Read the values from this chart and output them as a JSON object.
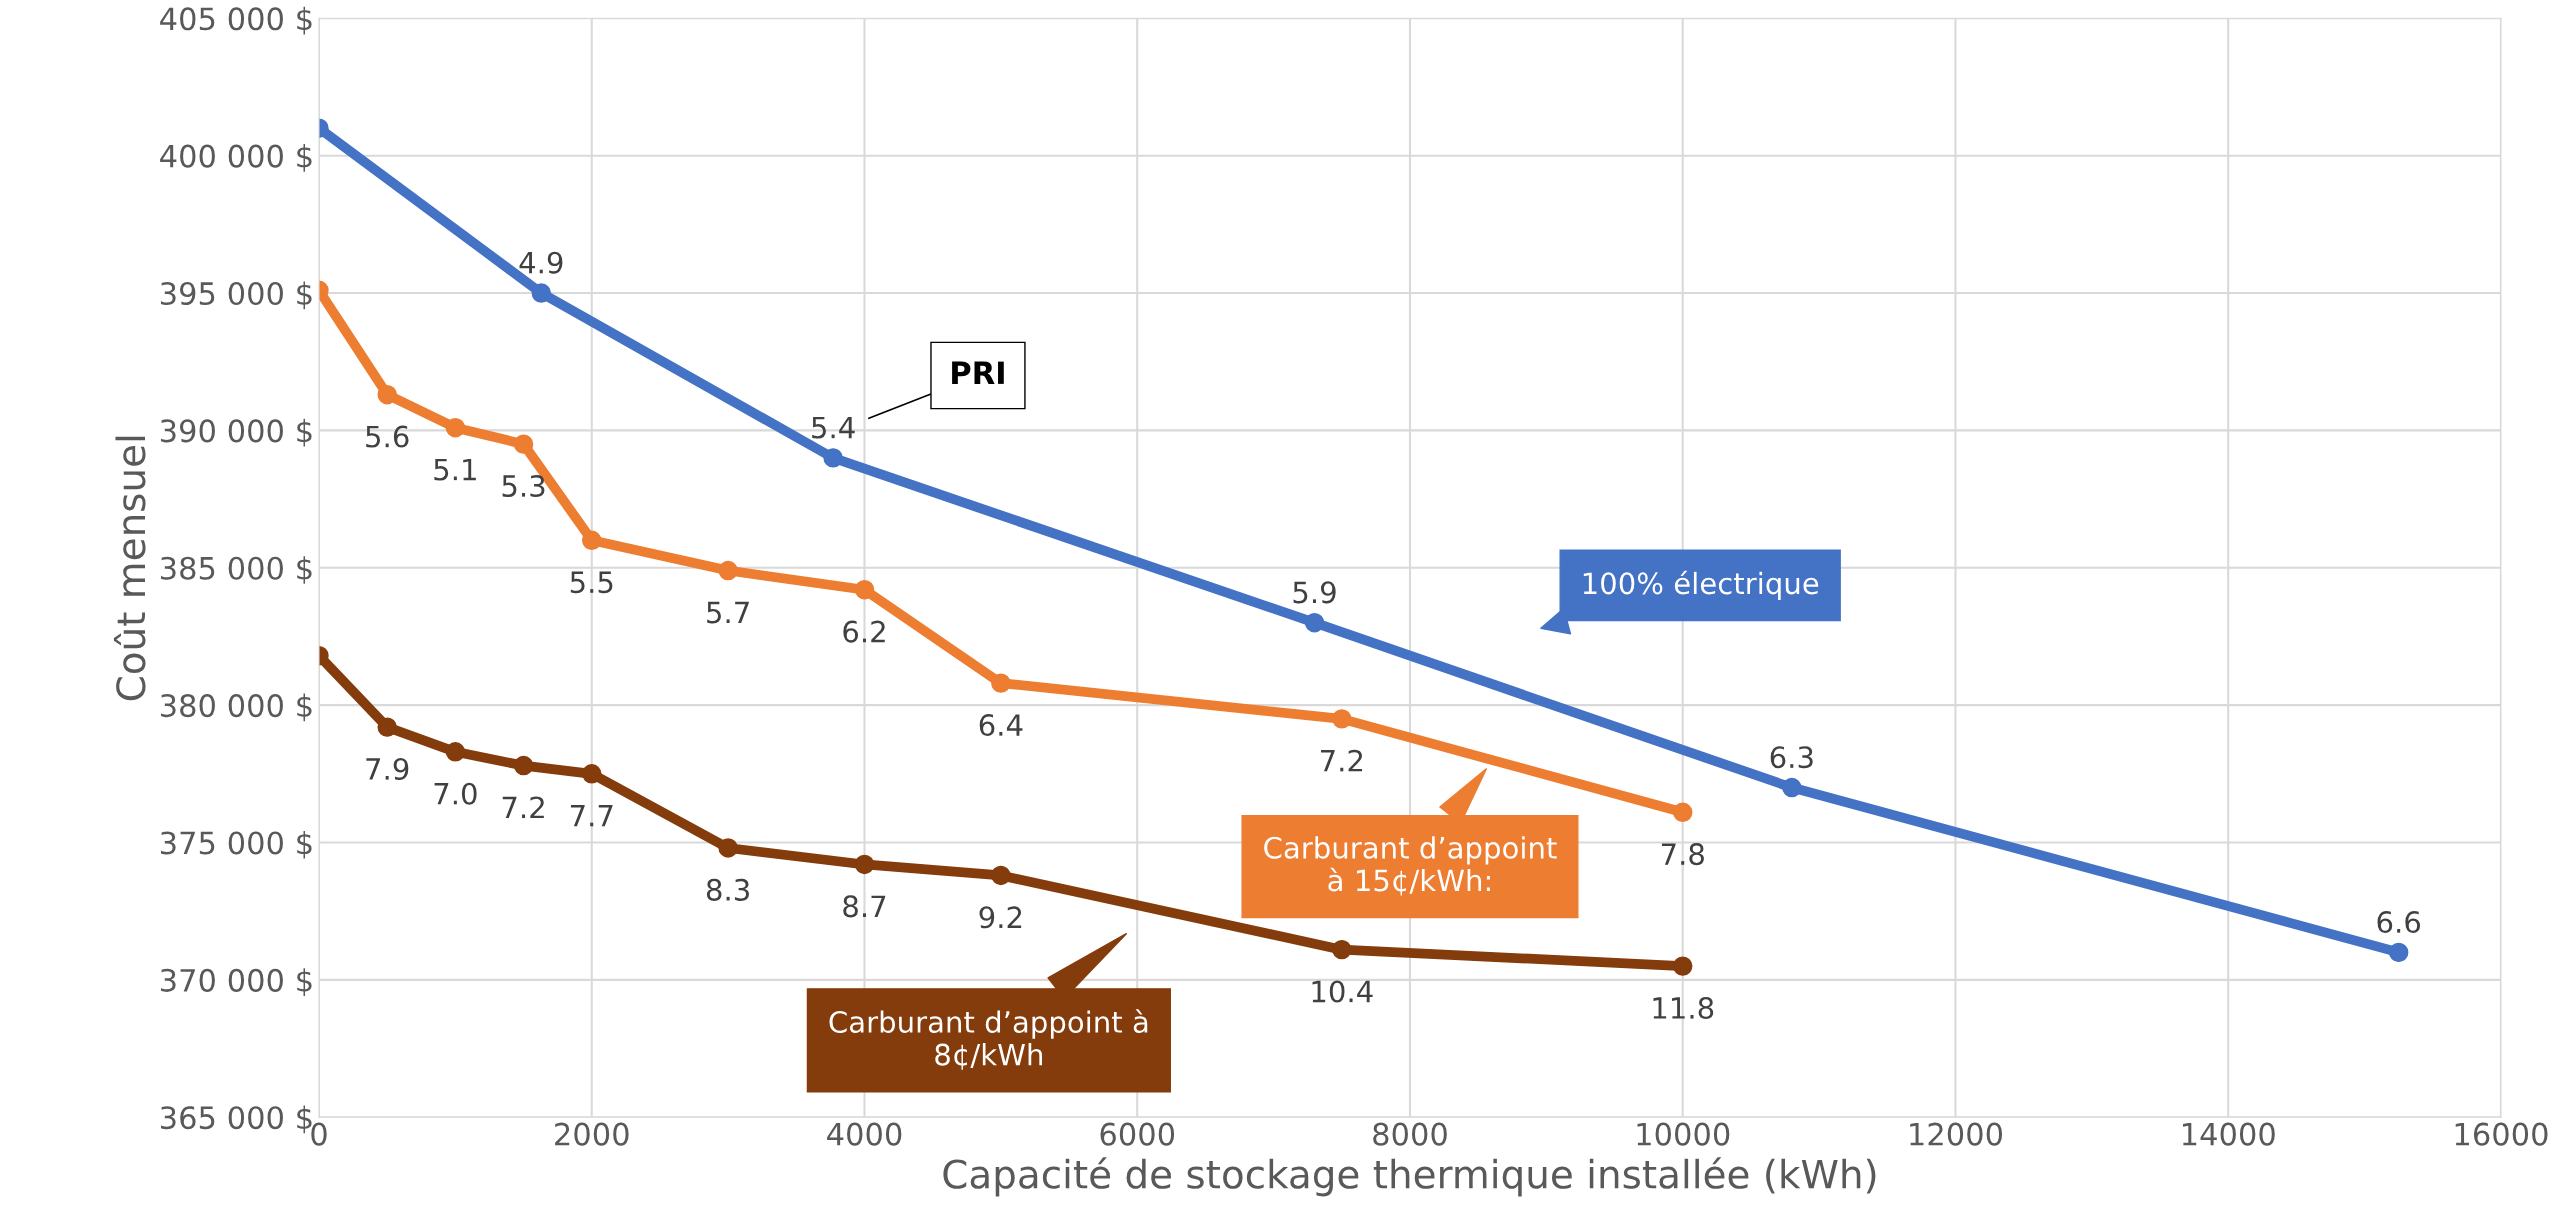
{
  "chart_data": {
    "type": "line",
    "xlabel": "Capacité de stockage thermique installée (kWh)",
    "ylabel": "Coût mensuel",
    "xlim": [
      0,
      16000
    ],
    "xticks": [
      0,
      2000,
      4000,
      6000,
      8000,
      10000,
      12000,
      14000,
      16000
    ],
    "ylim": [
      365000,
      405000
    ],
    "yticks": [
      {
        "value": 365000,
        "label": "365 000 $"
      },
      {
        "value": 370000,
        "label": "370 000 $"
      },
      {
        "value": 375000,
        "label": "375 000 $"
      },
      {
        "value": 380000,
        "label": "380 000 $"
      },
      {
        "value": 385000,
        "label": "385 000 $"
      },
      {
        "value": 390000,
        "label": "390 000 $"
      },
      {
        "value": 395000,
        "label": "395 000 $"
      },
      {
        "value": 400000,
        "label": "400 000 $"
      },
      {
        "value": 405000,
        "label": "405 000 $"
      }
    ],
    "grid": true,
    "legend": "bottom",
    "marker": "circle",
    "line_style": "solid",
    "series": [
      {
        "name": "100% électrique",
        "color": "#4472c4",
        "x": [
          0,
          1630,
          3770,
          7300,
          10800,
          15250
        ],
        "values": [
          401000,
          395000,
          389000,
          383000,
          377000,
          371000
        ]
      },
      {
        "name": "Carburant d’appoint\nà 15¢/kWh:",
        "color": "#ed7d31",
        "x": [
          0,
          500,
          1000,
          1500,
          2000,
          3000,
          4000,
          5000,
          7500,
          10000
        ],
        "values": [
          395100,
          391300,
          390100,
          389500,
          386000,
          384900,
          384200,
          380800,
          379500,
          376100
        ]
      },
      {
        "name": "Carburant d’appoint à\n8¢/kWh",
        "color": "#843c0c",
        "x": [
          0,
          500,
          1000,
          1500,
          2000,
          3000,
          4000,
          5000,
          7500,
          10000
        ],
        "values": [
          381800,
          379200,
          378300,
          377800,
          377500,
          374800,
          374200,
          373800,
          371100,
          370500
        ]
      }
    ],
    "annotations": [
      "PRI",
      {
        "text": "4.9",
        "x": 1630,
        "y": 395000
      },
      {
        "text": "5.4",
        "x": 3770,
        "y": 389000
      },
      {
        "text": "5.9",
        "x": 7300,
        "y": 383000
      },
      {
        "text": "6.3",
        "x": 10800,
        "y": 377000
      },
      {
        "text": "6.6",
        "x": 15250,
        "y": 371000
      },
      {
        "text": "5.6",
        "x": 500,
        "y": 391300
      },
      {
        "text": "5.1",
        "x": 1000,
        "y": 390100
      },
      {
        "text": "5.3",
        "x": 1500,
        "y": 389500
      },
      {
        "text": "5.5",
        "x": 2000,
        "y": 386000
      },
      {
        "text": "5.7",
        "x": 3000,
        "y": 384900
      },
      {
        "text": "6.2",
        "x": 4000,
        "y": 384200
      },
      {
        "text": "6.4",
        "x": 5000,
        "y": 380800
      },
      {
        "text": "7.2",
        "x": 7500,
        "y": 379500
      },
      {
        "text": "7.8",
        "x": 10000,
        "y": 376100
      },
      {
        "text": "7.9",
        "x": 500,
        "y": 379200
      },
      {
        "text": "7.0",
        "x": 1000,
        "y": 378300
      },
      {
        "text": "7.2",
        "x": 1500,
        "y": 377800
      },
      {
        "text": "7.7",
        "x": 2000,
        "y": 377500
      },
      {
        "text": "8.3",
        "x": 3000,
        "y": 374800
      },
      {
        "text": "8.7",
        "x": 4000,
        "y": 374200
      },
      {
        "text": "9.2",
        "x": 5000,
        "y": 373800
      },
      {
        "text": "10.4",
        "x": 7500,
        "y": 371100
      },
      {
        "text": "11.8",
        "x": 10000,
        "y": 370500
      }
    ]
  }
}
